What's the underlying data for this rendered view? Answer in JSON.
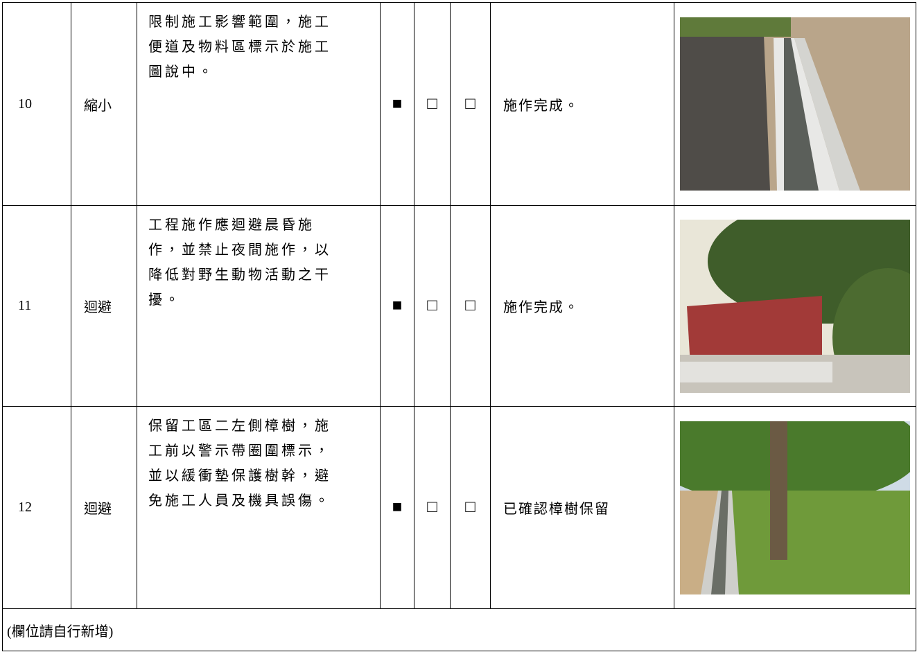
{
  "table": {
    "rows": [
      {
        "no": "10",
        "kind": "縮小",
        "desc": [
          "限制施工影響範圍，施工",
          "便道及物料區標示於施工",
          "圖說中。"
        ],
        "checks": [
          "■",
          "□",
          "□"
        ],
        "result": "施作完成。"
      },
      {
        "no": "11",
        "kind": "迴避",
        "desc": [
          "工程施作應迴避晨昏施",
          "作，並禁止夜間施作，以",
          "降低對野生動物活動之干",
          "擾。"
        ],
        "checks": [
          "■",
          "□",
          "□"
        ],
        "result": "施作完成。"
      },
      {
        "no": "12",
        "kind": "迴避",
        "desc": [
          "保留工區二左側樟樹，施",
          "工前以警示帶圈圍標示，",
          "並以緩衝墊保護樹幹，避",
          "免施工人員及機具誤傷。"
        ],
        "checks": [
          "■",
          "□",
          "□"
        ],
        "result": "已確認樟樹保留"
      }
    ],
    "footer": "(欄位請自行新增)"
  }
}
